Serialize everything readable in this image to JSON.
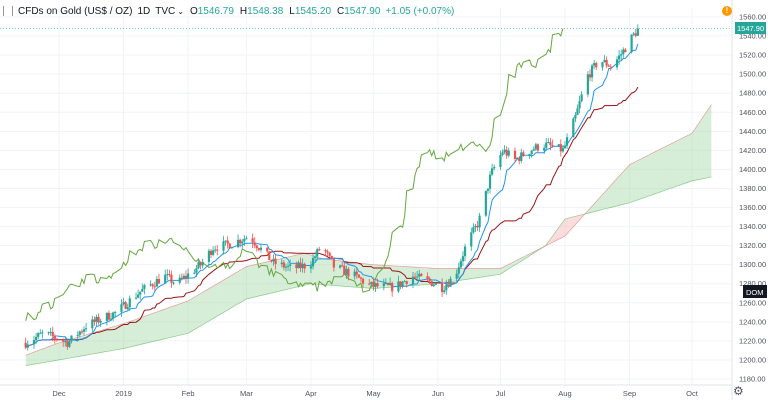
{
  "header": {
    "symbol": "CFDs on Gold (US$ / OZ)",
    "interval": "1D",
    "source": "TVC",
    "open_label": "O",
    "open": "1546.79",
    "high_label": "H",
    "high": "1548.38",
    "low_label": "L",
    "low": "1545.20",
    "close_label": "C",
    "close": "1547.90",
    "change": "+1.05 (+0.07%)"
  },
  "alert_badge": "!",
  "price_tag": "1547.90",
  "dom_tag": "DOM",
  "colors": {
    "up": "#26a69a",
    "down": "#ef5350",
    "conversion": "#2196f3",
    "base": "#991515",
    "lagging": "#66a63f",
    "cloud_bull": "#a5d6a7",
    "cloud_bear": "#f8b4b4"
  },
  "chart_data": {
    "type": "candlestick",
    "indicator": "ichimoku",
    "y_ticks": [
      "1560.00",
      "1540.00",
      "1520.00",
      "1500.00",
      "1480.00",
      "1460.00",
      "1440.00",
      "1420.00",
      "1400.00",
      "1380.00",
      "1360.00",
      "1340.00",
      "1320.00",
      "1300.00",
      "1280.00",
      "1260.00",
      "1240.00",
      "1220.00",
      "1200.00",
      "1180.00"
    ],
    "ylim": [
      1173,
      1570
    ],
    "x_ticks": [
      "Dec",
      "2019",
      "Feb",
      "Mar",
      "Apr",
      "May",
      "Jun",
      "Jul",
      "Aug",
      "Sep",
      "Oct"
    ],
    "month_anchors": [
      [
        0,
        "2018-11-15"
      ],
      [
        1,
        "2018-12-01"
      ],
      [
        2,
        "2019-01-01"
      ],
      [
        3,
        "2019-02-01"
      ],
      [
        4,
        "2019-03-01"
      ],
      [
        5,
        "2019-04-01"
      ],
      [
        6,
        "2019-05-01"
      ],
      [
        7,
        "2019-06-01"
      ],
      [
        8,
        "2019-07-01"
      ],
      [
        9,
        "2019-08-01"
      ],
      [
        10,
        "2019-09-01"
      ],
      [
        11,
        "2019-10-01"
      ],
      [
        12,
        "2019-11-01"
      ]
    ],
    "price_path": [
      [
        0,
        1218
      ],
      [
        0.3,
        1228
      ],
      [
        0.7,
        1218
      ],
      [
        1,
        1236
      ],
      [
        1.5,
        1250
      ],
      [
        1.9,
        1272
      ],
      [
        2.3,
        1288
      ],
      [
        2.5,
        1280
      ],
      [
        2.9,
        1300
      ],
      [
        3.1,
        1318
      ],
      [
        3.4,
        1322
      ],
      [
        3.7,
        1330
      ],
      [
        3.9,
        1316
      ],
      [
        4.1,
        1302
      ],
      [
        4.4,
        1296
      ],
      [
        4.7,
        1300
      ],
      [
        4.9,
        1320
      ],
      [
        5.1,
        1298
      ],
      [
        5.4,
        1290
      ],
      [
        5.7,
        1278
      ],
      [
        6.1,
        1276
      ],
      [
        6.4,
        1288
      ],
      [
        6.7,
        1282
      ],
      [
        6.9,
        1276
      ],
      [
        7.1,
        1288
      ],
      [
        7.3,
        1322
      ],
      [
        7.5,
        1345
      ],
      [
        7.7,
        1395
      ],
      [
        7.9,
        1420
      ],
      [
        8.1,
        1410
      ],
      [
        8.4,
        1422
      ],
      [
        8.6,
        1426
      ],
      [
        8.9,
        1420
      ],
      [
        9.1,
        1455
      ],
      [
        9.3,
        1498
      ],
      [
        9.5,
        1515
      ],
      [
        9.7,
        1508
      ],
      [
        9.9,
        1525
      ],
      [
        10.05,
        1540
      ],
      [
        10.15,
        1547.9
      ]
    ],
    "cloud_path": [
      [
        0,
        1205
      ],
      [
        1,
        1218
      ],
      [
        2,
        1238
      ],
      [
        3,
        1262
      ],
      [
        4,
        1298
      ],
      [
        4.9,
        1312
      ],
      [
        5.2,
        1306
      ],
      [
        6,
        1300
      ],
      [
        7,
        1296
      ],
      [
        8,
        1296
      ],
      [
        9,
        1330
      ],
      [
        10,
        1405
      ],
      [
        11,
        1438
      ],
      [
        11.3,
        1468
      ]
    ],
    "cloud_path_lower": [
      [
        0,
        1194
      ],
      [
        1,
        1200
      ],
      [
        2,
        1212
      ],
      [
        3,
        1228
      ],
      [
        4,
        1264
      ],
      [
        5,
        1280
      ],
      [
        6,
        1275
      ],
      [
        7,
        1280
      ],
      [
        8,
        1290
      ],
      [
        8.7,
        1320
      ],
      [
        9,
        1348
      ],
      [
        10,
        1365
      ],
      [
        11,
        1388
      ],
      [
        11.3,
        1392
      ]
    ]
  }
}
